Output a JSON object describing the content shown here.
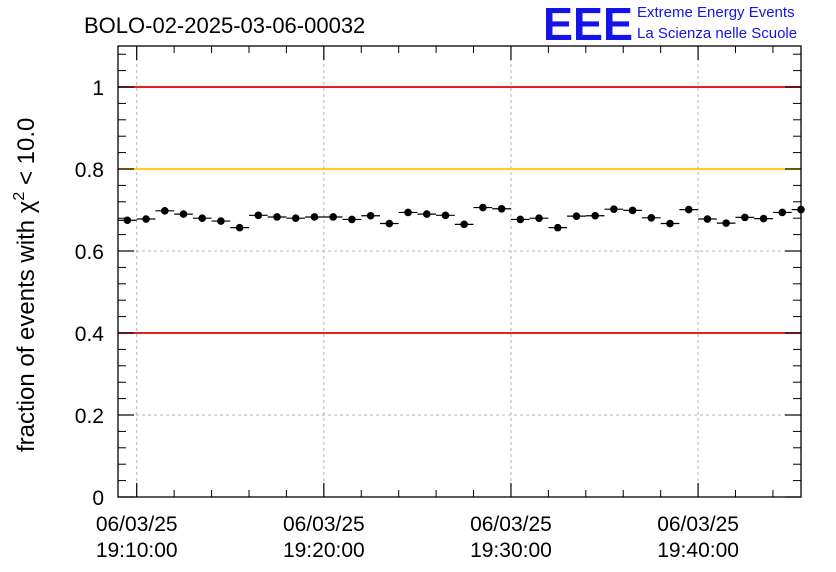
{
  "chart_data": {
    "type": "scatter",
    "title": "BOLO-02-2025-03-06-00032",
    "ylabel_prefix": "fraction of events with ",
    "ylabel_symbol": "χ",
    "ylabel_exp": "2",
    "ylabel_suffix": " < 10.0",
    "xlabel": "",
    "xlim_minutes": [
      -1.0,
      35.5
    ],
    "ylim": [
      0,
      1.1
    ],
    "yticks": [
      {
        "value": 0,
        "label": "0"
      },
      {
        "value": 0.2,
        "label": "0.2"
      },
      {
        "value": 0.4,
        "label": "0.4"
      },
      {
        "value": 0.6,
        "label": "0.6"
      },
      {
        "value": 0.8,
        "label": "0.8"
      },
      {
        "value": 1.0,
        "label": "1"
      }
    ],
    "xticks": [
      {
        "minute": 0,
        "date": "06/03/25",
        "time": "19:10:00"
      },
      {
        "minute": 10,
        "date": "06/03/25",
        "time": "19:20:00"
      },
      {
        "minute": 20,
        "date": "06/03/25",
        "time": "19:30:00"
      },
      {
        "minute": 30,
        "date": "06/03/25",
        "time": "19:40:00"
      }
    ],
    "reference_lines": [
      {
        "y": 1.0,
        "color": "#e00000"
      },
      {
        "y": 0.8,
        "color": "#ffc800"
      },
      {
        "y": 0.4,
        "color": "#e00000"
      }
    ],
    "series": [
      {
        "name": "fraction",
        "bin_width_minutes": 1.0,
        "x_minutes": [
          -0.5,
          0.5,
          1.5,
          2.5,
          3.5,
          4.5,
          5.5,
          6.5,
          7.5,
          8.5,
          9.5,
          10.5,
          11.5,
          12.5,
          13.5,
          14.5,
          15.5,
          16.5,
          17.5,
          18.5,
          19.5,
          20.5,
          21.5,
          22.5,
          23.5,
          24.5,
          25.5,
          26.5,
          27.5,
          28.5,
          29.5,
          30.5,
          31.5,
          32.5,
          33.5,
          34.5,
          35.5
        ],
        "values": [
          0.675,
          0.678,
          0.698,
          0.69,
          0.68,
          0.673,
          0.657,
          0.687,
          0.683,
          0.68,
          0.683,
          0.683,
          0.677,
          0.686,
          0.667,
          0.694,
          0.69,
          0.687,
          0.665,
          0.706,
          0.703,
          0.677,
          0.68,
          0.657,
          0.685,
          0.686,
          0.702,
          0.699,
          0.681,
          0.667,
          0.701,
          0.678,
          0.668,
          0.682,
          0.679,
          0.694,
          0.701
        ],
        "errors": [
          0.008,
          0.008,
          0.008,
          0.008,
          0.008,
          0.008,
          0.008,
          0.008,
          0.008,
          0.008,
          0.008,
          0.008,
          0.008,
          0.008,
          0.008,
          0.008,
          0.008,
          0.008,
          0.008,
          0.008,
          0.008,
          0.008,
          0.008,
          0.008,
          0.008,
          0.008,
          0.008,
          0.008,
          0.008,
          0.008,
          0.008,
          0.008,
          0.008,
          0.008,
          0.008,
          0.008,
          0.008
        ],
        "color": "#000000"
      }
    ],
    "grid": true
  },
  "logo": {
    "mark": "EEE",
    "line1": "Extreme Energy Events",
    "line2": "La Scienza nelle Scuole",
    "color": "#1414e6"
  }
}
